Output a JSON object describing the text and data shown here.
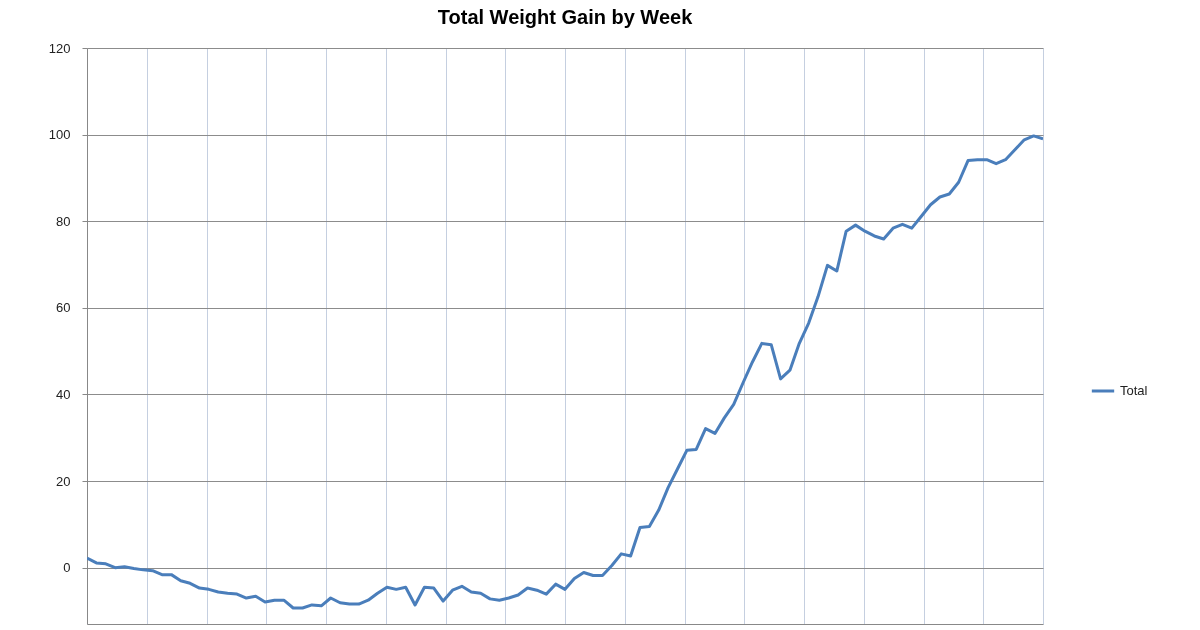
{
  "chart_data": {
    "type": "line",
    "title": "Total Weight Gain by Week",
    "categories": [
      null,
      null,
      null,
      null,
      null,
      null,
      null,
      null,
      null,
      null,
      null,
      null,
      null,
      null,
      null,
      null,
      null,
      null,
      null,
      null,
      null,
      null,
      null,
      null,
      null,
      null,
      null,
      null,
      null,
      null,
      null,
      null,
      null,
      null,
      null,
      null,
      null,
      null,
      null,
      null,
      null,
      null,
      null,
      null,
      null,
      null,
      null,
      null,
      null,
      null,
      null,
      null,
      null,
      null,
      null,
      null,
      null,
      null,
      null,
      null,
      null,
      null,
      null,
      null,
      null,
      null,
      null,
      null,
      null,
      null,
      null,
      null,
      null,
      null,
      null,
      null,
      null,
      null,
      null,
      null,
      null,
      null,
      null,
      null,
      null,
      null,
      null,
      null,
      null,
      null,
      null,
      null,
      null,
      null,
      null,
      null,
      null,
      null,
      null,
      null,
      null,
      null,
      null
    ],
    "series": [
      {
        "name": "Total",
        "color": "#4a7ebb",
        "values": [
          2.2,
          1.1,
          0.9,
          0,
          0.2,
          -0.2,
          -0.5,
          -0.7,
          -1.6,
          -1.6,
          -3,
          -3.6,
          -4.7,
          -5,
          -5.6,
          -5.9,
          -6.1,
          -7,
          -6.6,
          -7.9,
          -7.5,
          -7.5,
          -9.3,
          -9.3,
          -8.6,
          -8.8,
          -7,
          -8.1,
          -8.4,
          -8.4,
          -7.5,
          -5.9,
          -4.5,
          -5,
          -4.5,
          -8.6,
          -4.5,
          -4.7,
          -7.7,
          -5.2,
          -4.3,
          -5.6,
          -5.9,
          -7.2,
          -7.5,
          -7,
          -6.3,
          -4.7,
          -5.2,
          -6.1,
          -3.8,
          -5,
          -2.5,
          -1.1,
          -1.8,
          -1.8,
          0.5,
          3.2,
          2.7,
          9.3,
          9.5,
          13.3,
          18.5,
          22.8,
          27.1,
          27.3,
          32.1,
          31,
          34.6,
          37.7,
          42.7,
          47.5,
          51.8,
          51.5,
          43.6,
          45.6,
          51.8,
          56.5,
          62.6,
          69.8,
          68.5,
          77.7,
          79.1,
          77.7,
          76.6,
          75.9,
          78.4,
          79.3,
          78.4,
          81.1,
          83.8,
          85.6,
          86.3,
          89,
          94,
          94.2,
          94.2,
          93.3,
          94.2,
          96.5,
          98.8,
          99.7,
          99
        ]
      }
    ],
    "ylim": [
      -13,
      120
    ],
    "yticks": [
      0,
      20,
      40,
      60,
      80,
      100,
      120
    ],
    "grid": true,
    "legend": "right",
    "tick_labels": "y"
  }
}
